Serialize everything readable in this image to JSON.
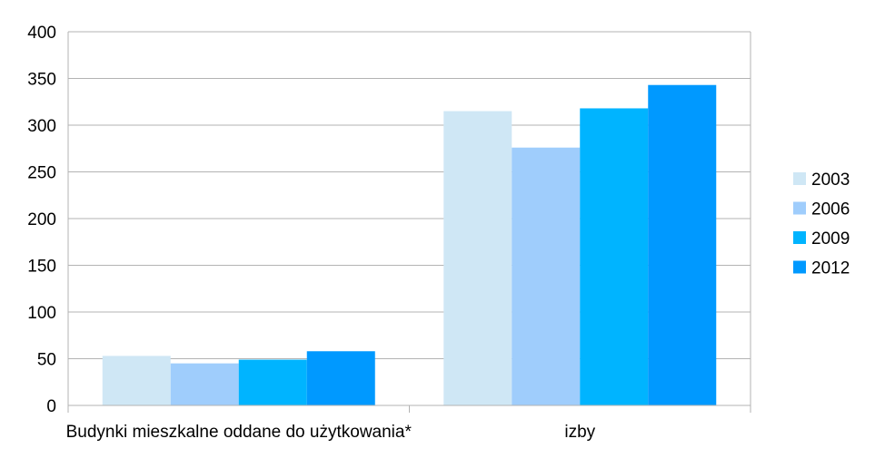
{
  "chart_data": {
    "type": "bar",
    "title": "",
    "xlabel": "",
    "ylabel": "",
    "categories": [
      "Budynki mieszkalne oddane do użytkowania*",
      "izby"
    ],
    "series": [
      {
        "name": "2003",
        "values": [
          53,
          315
        ],
        "color": "#cfe7f5"
      },
      {
        "name": "2006",
        "values": [
          45,
          276
        ],
        "color": "#9fcdfc"
      },
      {
        "name": "2009",
        "values": [
          49,
          318
        ],
        "color": "#00b4ff"
      },
      {
        "name": "2012",
        "values": [
          58,
          343
        ],
        "color": "#0099ff"
      }
    ],
    "ylim": [
      0,
      400
    ],
    "yticks": [
      0,
      50,
      100,
      150,
      200,
      250,
      300,
      350,
      400
    ],
    "grid": true,
    "legend_position": "right"
  }
}
